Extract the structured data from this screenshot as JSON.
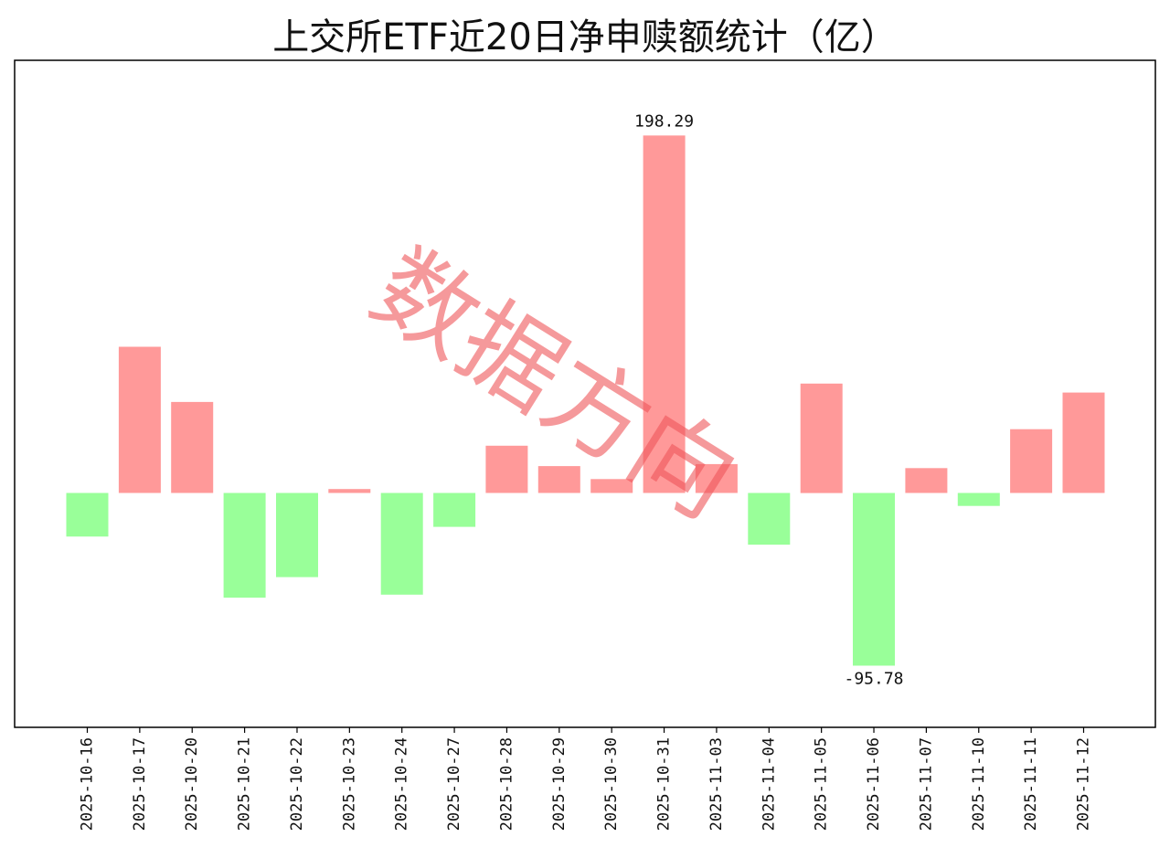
{
  "chart_data": {
    "type": "bar",
    "title": "上交所ETF近20日净申赎额统计（亿）",
    "xlabel": "",
    "ylabel": "",
    "ylim": [
      -130,
      240
    ],
    "grid": false,
    "legend": "none",
    "categories": [
      "2025-10-16",
      "2025-10-17",
      "2025-10-20",
      "2025-10-21",
      "2025-10-22",
      "2025-10-23",
      "2025-10-24",
      "2025-10-27",
      "2025-10-28",
      "2025-10-29",
      "2025-10-30",
      "2025-10-31",
      "2025-11-03",
      "2025-11-04",
      "2025-11-05",
      "2025-11-06",
      "2025-11-07",
      "2025-11-10",
      "2025-11-11",
      "2025-11-12"
    ],
    "values": [
      -24.2,
      81.1,
      50.5,
      -58.1,
      -46.7,
      2.2,
      -56.4,
      -18.8,
      26.2,
      14.9,
      7.7,
      198.29,
      16.0,
      -28.7,
      60.7,
      -95.78,
      13.8,
      -7.2,
      35.4,
      55.7
    ],
    "data_labels": [
      {
        "category": "2025-10-31",
        "text": "198.29"
      },
      {
        "category": "2025-11-06",
        "text": "-95.78"
      }
    ],
    "colors": {
      "positive": "#ff9999",
      "negative": "#99ff99",
      "axes": "#000000"
    }
  },
  "watermark": {
    "text": "数据方向"
  }
}
